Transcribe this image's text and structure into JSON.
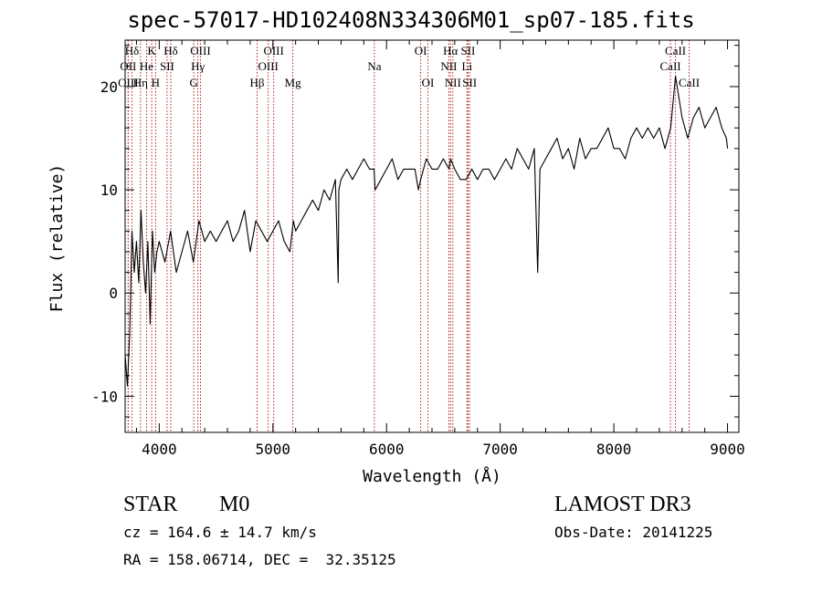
{
  "header": {
    "title": "spec-57017-HD102408N334306M01_sp07-185.fits"
  },
  "info": {
    "class": "STAR",
    "subclass": "M0",
    "survey": "LAMOST DR3",
    "cz": "cz = 164.6 ± 14.7 km/s",
    "obs_date": "Obs-Date: 20141225",
    "coords": "RA = 158.06714, DEC =  32.35125"
  },
  "chart_data": {
    "type": "line",
    "title": "spec-57017-HD102408N334306M01_sp07-185.fits",
    "xlabel": "Wavelength (Å)",
    "ylabel": "Flux (relative)",
    "xlim": [
      3700,
      9100
    ],
    "ylim": [
      -13.5,
      24.5
    ],
    "xticks": [
      4000,
      5000,
      6000,
      7000,
      8000,
      9000
    ],
    "yticks": [
      -10,
      0,
      10,
      20
    ],
    "grid": false,
    "series": [
      {
        "name": "spectrum",
        "x": [
          3700,
          3720,
          3740,
          3760,
          3780,
          3800,
          3820,
          3840,
          3860,
          3880,
          3900,
          3920,
          3940,
          3960,
          3980,
          4000,
          4050,
          4100,
          4150,
          4200,
          4250,
          4300,
          4350,
          4400,
          4450,
          4500,
          4550,
          4600,
          4650,
          4700,
          4750,
          4800,
          4850,
          4900,
          4950,
          5000,
          5050,
          5100,
          5150,
          5180,
          5200,
          5250,
          5300,
          5350,
          5400,
          5450,
          5500,
          5550,
          5575,
          5580,
          5600,
          5650,
          5700,
          5750,
          5800,
          5850,
          5890,
          5900,
          5950,
          6000,
          6050,
          6100,
          6150,
          6200,
          6250,
          6280,
          6300,
          6350,
          6400,
          6450,
          6500,
          6550,
          6563,
          6600,
          6650,
          6700,
          6750,
          6800,
          6850,
          6900,
          6950,
          7000,
          7050,
          7100,
          7150,
          7200,
          7250,
          7300,
          7330,
          7350,
          7400,
          7450,
          7500,
          7550,
          7600,
          7650,
          7700,
          7750,
          7800,
          7850,
          7900,
          7950,
          8000,
          8050,
          8100,
          8150,
          8200,
          8250,
          8300,
          8350,
          8400,
          8450,
          8500,
          8542,
          8600,
          8650,
          8700,
          8750,
          8800,
          8850,
          8900,
          8950,
          8990,
          9000
        ],
        "y": [
          -6,
          -9,
          -4,
          6,
          2,
          5,
          1,
          8,
          3,
          0,
          5,
          -3,
          6,
          2,
          4,
          5,
          3,
          6,
          2,
          4,
          6,
          3,
          7,
          5,
          6,
          5,
          6,
          7,
          5,
          6,
          8,
          4,
          7,
          6,
          5,
          6,
          7,
          5,
          4,
          7,
          6,
          7,
          8,
          9,
          8,
          10,
          9,
          11,
          1,
          10,
          11,
          12,
          11,
          12,
          13,
          12,
          12,
          10,
          11,
          12,
          13,
          11,
          12,
          12,
          12,
          10,
          11,
          13,
          12,
          12,
          13,
          12,
          13,
          12,
          11,
          11,
          12,
          11,
          12,
          12,
          11,
          12,
          13,
          12,
          14,
          13,
          12,
          14,
          2,
          12,
          13,
          14,
          15,
          13,
          14,
          12,
          15,
          13,
          14,
          14,
          15,
          16,
          14,
          14,
          13,
          15,
          16,
          15,
          16,
          15,
          16,
          14,
          16,
          21,
          17,
          15,
          17,
          18,
          16,
          17,
          18,
          16,
          15,
          14
        ]
      }
    ],
    "line_markers": [
      {
        "label": "Hδ",
        "x": 3760,
        "row": 0
      },
      {
        "label": "OII",
        "x": 3727,
        "row": 1
      },
      {
        "label": "OIII",
        "x": 3727,
        "row": 2
      },
      {
        "label": "He",
        "x": 3889,
        "row": 1
      },
      {
        "label": "Hη",
        "x": 3835,
        "row": 2
      },
      {
        "label": "K",
        "x": 3934,
        "row": 0
      },
      {
        "label": "SII",
        "x": 4069,
        "row": 1
      },
      {
        "label": "H",
        "x": 3968,
        "row": 2
      },
      {
        "label": "Hδ",
        "x": 4102,
        "row": 0
      },
      {
        "label": "OIII",
        "x": 4363,
        "row": 0
      },
      {
        "label": "Hγ",
        "x": 4340,
        "row": 1
      },
      {
        "label": "G",
        "x": 4304,
        "row": 2
      },
      {
        "label": "OIII",
        "x": 5007,
        "row": 0
      },
      {
        "label": "OIII",
        "x": 4959,
        "row": 1
      },
      {
        "label": "Hβ",
        "x": 4861,
        "row": 2
      },
      {
        "label": "Mg",
        "x": 5175,
        "row": 2
      },
      {
        "label": "Na",
        "x": 5893,
        "row": 1
      },
      {
        "label": "OI",
        "x": 6300,
        "row": 0
      },
      {
        "label": "OI",
        "x": 6364,
        "row": 2
      },
      {
        "label": "Hα",
        "x": 6563,
        "row": 0
      },
      {
        "label": "SII",
        "x": 6717,
        "row": 0
      },
      {
        "label": "NII",
        "x": 6548,
        "row": 1
      },
      {
        "label": "Li",
        "x": 6708,
        "row": 1
      },
      {
        "label": "NII",
        "x": 6583,
        "row": 2
      },
      {
        "label": "SII",
        "x": 6731,
        "row": 2
      },
      {
        "label": "CaII",
        "x": 8542,
        "row": 0
      },
      {
        "label": "CaII",
        "x": 8498,
        "row": 1
      },
      {
        "label": "CaII",
        "x": 8662,
        "row": 2
      }
    ]
  }
}
